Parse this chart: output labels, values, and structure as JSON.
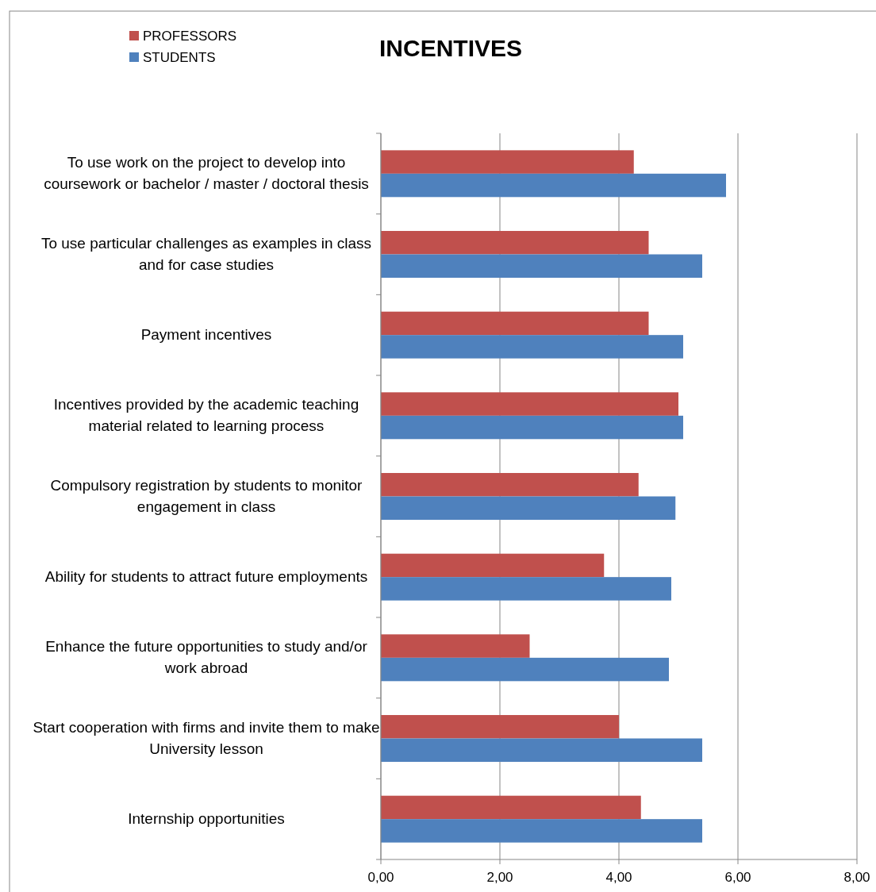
{
  "chart_data": {
    "type": "bar",
    "orientation": "horizontal",
    "title": "INCENTIVES",
    "categories": [
      "To use work on the project to develop into coursework or bachelor / master / doctoral thesis",
      "To use particular challenges as examples in class and for case studies",
      "Payment incentives",
      "Incentives provided by the academic teaching material related to learning process",
      "Compulsory registration by students to monitor engagement in class",
      "Ability for students to attract future employments",
      "Enhance the future opportunities to study and/or work abroad",
      "Start cooperation with firms and invite them to make University lesson",
      "Internship opportunities"
    ],
    "series": [
      {
        "name": "PROFESSORS",
        "color": "#c0504d",
        "values": [
          4.25,
          4.5,
          4.5,
          5.0,
          4.33,
          3.75,
          2.5,
          4.0,
          4.37
        ]
      },
      {
        "name": "STUDENTS",
        "color": "#4f81bd",
        "values": [
          5.8,
          5.4,
          5.08,
          5.08,
          4.95,
          4.88,
          4.84,
          5.4,
          5.4
        ]
      }
    ],
    "xlim": [
      0,
      8
    ],
    "xticks": [
      {
        "value": 0,
        "label": "0,00"
      },
      {
        "value": 2,
        "label": "2,00"
      },
      {
        "value": 4,
        "label": "4,00"
      },
      {
        "value": 6,
        "label": "6,00"
      },
      {
        "value": 8,
        "label": "8,00"
      }
    ],
    "grid": "x",
    "legend": "top left"
  }
}
